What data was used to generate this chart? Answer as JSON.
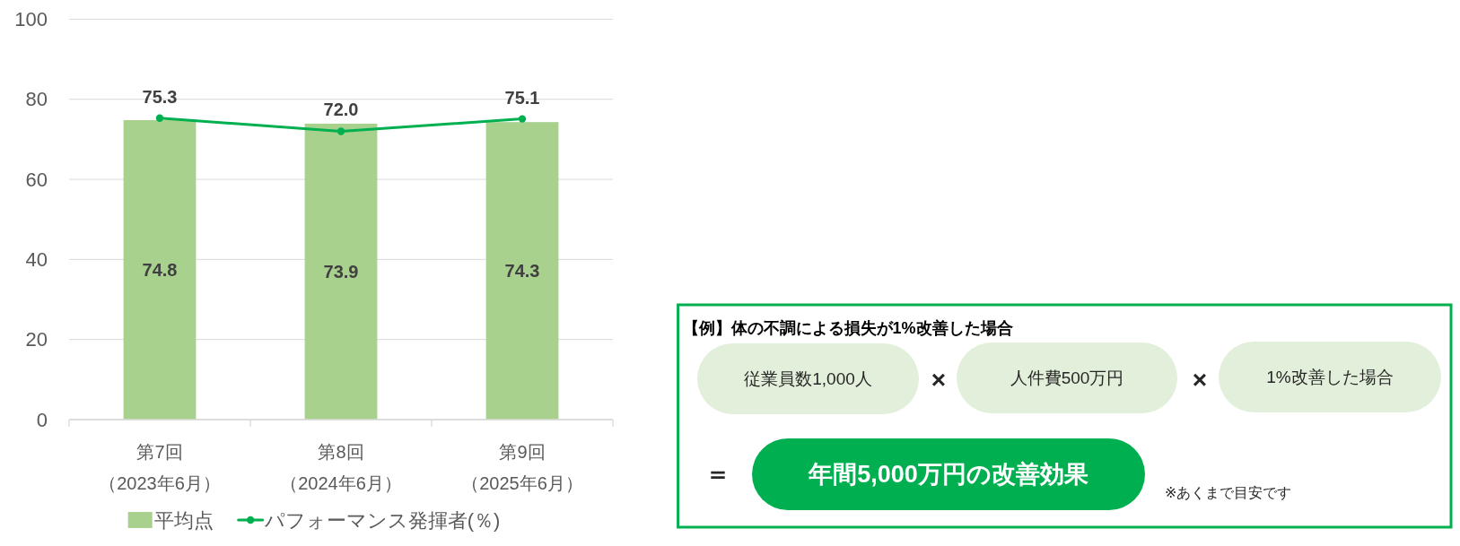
{
  "chart_data": [
    {
      "type": "bar",
      "categories": [
        "第7回（2023年6月）",
        "第8回（2024年6月）",
        "第9回（2025年6月）"
      ],
      "series": [
        {
          "name": "平均点",
          "type": "bar",
          "color": "#a9d18e",
          "values": [
            74.8,
            73.9,
            74.3
          ]
        },
        {
          "name": "パフォーマンス発揮者(％)",
          "type": "line",
          "color": "#00b050",
          "values": [
            75.3,
            72.0,
            75.1
          ],
          "value_labels": [
            "75.3",
            "72.0",
            "75.1"
          ]
        }
      ],
      "ylim": [
        0,
        100
      ],
      "yticks": [
        0,
        20,
        40,
        60,
        80,
        100
      ],
      "grid": "y",
      "legend": "bottom",
      "marker": "circle",
      "line_style": "solid",
      "data_labels": true
    },
    {
      "type": "other",
      "title": "【例】体の不調による損失が1%改善した場合",
      "annotations": [
        "従業員数1,000人",
        "×",
        "人件費500万円",
        "×",
        "1%改善した場合",
        "＝",
        "年間5,000万円の改善効果",
        "※あくまで目安です"
      ]
    }
  ]
}
